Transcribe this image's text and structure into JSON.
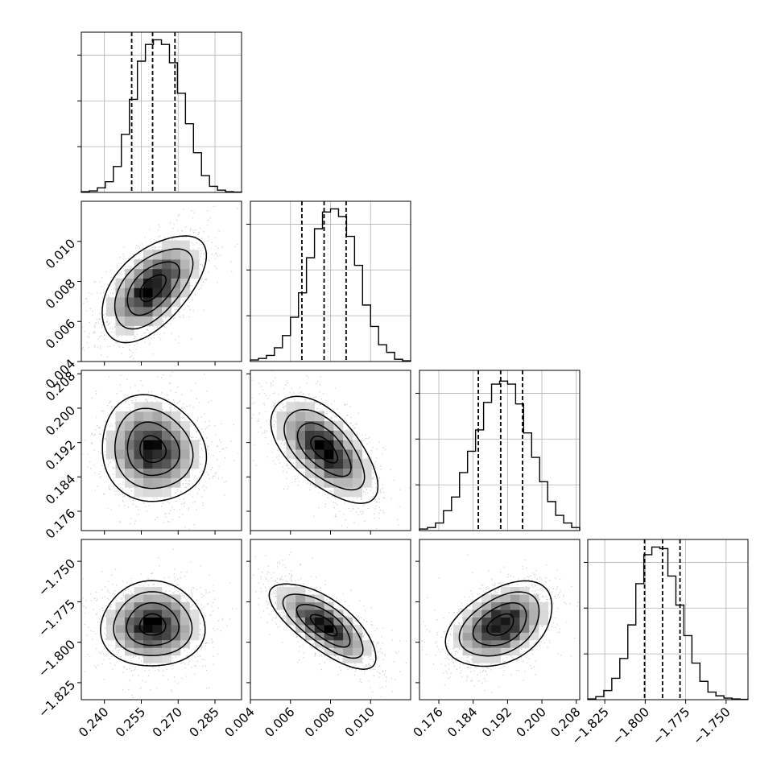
{
  "chart_data": {
    "type": "corner",
    "parameters": [
      {
        "ticks": [
          0.24,
          0.255,
          0.27,
          0.285
        ],
        "tick_labels": [
          "0.240",
          "0.255",
          "0.270",
          "0.285"
        ],
        "range": [
          0.2306,
          0.2958
        ]
      },
      {
        "ticks": [
          0.004,
          0.006,
          0.008,
          0.01
        ],
        "tick_labels": [
          "0.004",
          "0.006",
          "0.008",
          "0.010"
        ],
        "range": [
          0.004,
          0.012
        ]
      },
      {
        "ticks": [
          0.176,
          0.184,
          0.192,
          0.2,
          0.208
        ],
        "tick_labels": [
          "0.176",
          "0.184",
          "0.192",
          "0.200",
          "0.208"
        ],
        "range": [
          0.1715,
          0.2088
        ]
      },
      {
        "ticks": [
          -1.825,
          -1.8,
          -1.775,
          -1.75
        ],
        "tick_labels": [
          "−1.825",
          "−1.800",
          "−1.775",
          "−1.750"
        ],
        "range": [
          -1.8355,
          -1.7365
        ]
      }
    ],
    "marginals": [
      {
        "counts": [
          0.005,
          0.01,
          0.03,
          0.07,
          0.17,
          0.38,
          0.61,
          0.86,
          0.97,
          1.0,
          0.97,
          0.85,
          0.65,
          0.45,
          0.26,
          0.11,
          0.04,
          0.015,
          0.005,
          0.002
        ],
        "quantiles": [
          0.2511,
          0.2596,
          0.2687
        ]
      },
      {
        "counts": [
          0.01,
          0.02,
          0.04,
          0.09,
          0.17,
          0.29,
          0.45,
          0.68,
          0.87,
          0.98,
          1.0,
          0.95,
          0.82,
          0.63,
          0.37,
          0.23,
          0.11,
          0.06,
          0.015,
          0.005
        ],
        "quantiles": [
          0.00657,
          0.00768,
          0.00878
        ]
      },
      {
        "counts": [
          0.01,
          0.02,
          0.05,
          0.13,
          0.22,
          0.38,
          0.52,
          0.66,
          0.84,
          0.96,
          0.98,
          0.96,
          0.83,
          0.64,
          0.48,
          0.32,
          0.19,
          0.1,
          0.05,
          0.02
        ],
        "quantiles": [
          0.1852,
          0.1904,
          0.1955
        ]
      },
      {
        "counts": [
          0.005,
          0.02,
          0.06,
          0.14,
          0.27,
          0.49,
          0.76,
          0.95,
          1.0,
          0.99,
          0.81,
          0.62,
          0.42,
          0.24,
          0.12,
          0.05,
          0.025,
          0.01,
          0.005,
          0.002
        ],
        "quantiles": [
          -1.8004,
          -1.7893,
          -1.7785
        ]
      }
    ],
    "pairs": [
      {
        "row": 1,
        "col": 0,
        "correlation": 0.55
      },
      {
        "row": 2,
        "col": 0,
        "correlation": -0.1
      },
      {
        "row": 2,
        "col": 1,
        "correlation": -0.6
      },
      {
        "row": 3,
        "col": 0,
        "correlation": 0.0
      },
      {
        "row": 3,
        "col": 1,
        "correlation": -0.72
      },
      {
        "row": 3,
        "col": 2,
        "correlation": 0.4
      }
    ],
    "grid": true,
    "colors": {
      "line": "#000000",
      "grid": "#b0b0b0",
      "points": "#8a8a8a",
      "density_dark": "#000000"
    }
  }
}
